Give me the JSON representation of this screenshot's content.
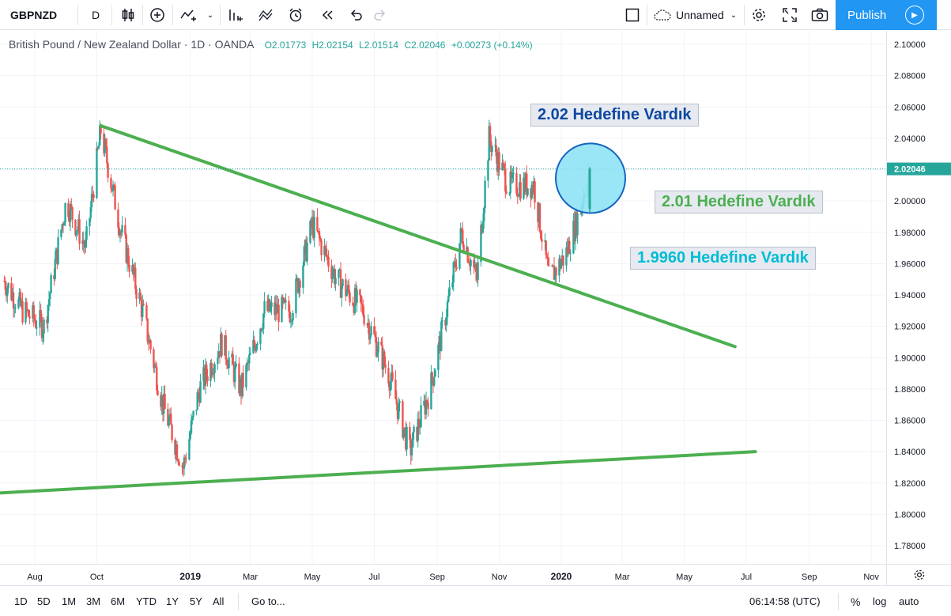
{
  "toolbar": {
    "symbol": "GBPNZD",
    "interval": "D",
    "layout_name": "Unnamed",
    "publish_label": "Publish"
  },
  "legend": {
    "title": "British Pound / New Zealand Dollar · 1D · OANDA",
    "open": "O2.01773",
    "high": "H2.02154",
    "low": "L2.01514",
    "close": "C2.02046",
    "change": "+0.00273 (+0.14%)"
  },
  "annotations": {
    "a1": "2.02 Hedefine Vardık",
    "a2": "2.01 Hedefine Vardık",
    "a3": "1.9960 Hedefine Vardık"
  },
  "colors": {
    "up": "#26a69a",
    "down": "#ef5350",
    "trendline": "#4caf50",
    "circle_fill": "#8fe3f5",
    "circle_stroke": "#1565c0",
    "annot1": "#0d47a1",
    "annot2": "#4caf50",
    "annot3": "#00bcd4",
    "last_price_bg": "#26a69a"
  },
  "price_axis": {
    "labels": [
      "2.10000",
      "2.08000",
      "2.06000",
      "2.04000",
      "2.02000",
      "2.00000",
      "1.98000",
      "1.96000",
      "1.94000",
      "1.92000",
      "1.90000",
      "1.88000",
      "1.86000",
      "1.84000",
      "1.82000",
      "1.80000",
      "1.78000"
    ],
    "last_price": "2.02046"
  },
  "time_axis": {
    "labels": [
      "Aug",
      "Oct",
      "2019",
      "Mar",
      "May",
      "Jul",
      "Sep",
      "Nov",
      "2020",
      "Mar",
      "May",
      "Jul",
      "Sep",
      "Nov"
    ],
    "bold": [
      "2019",
      "2020"
    ]
  },
  "bottom": {
    "ranges": [
      "1D",
      "5D",
      "1M",
      "3M",
      "6M",
      "YTD",
      "1Y",
      "5Y",
      "All"
    ],
    "goto": "Go to...",
    "time": "06:14:58 (UTC)",
    "percent": "%",
    "log": "log",
    "auto": "auto"
  },
  "chart_data": {
    "type": "candlestick",
    "symbol": "GBPNZD",
    "timeframe": "1D",
    "ylim": [
      1.77,
      2.105
    ],
    "approx_close_path": [
      {
        "date": "2018-07-01",
        "close": 1.95
      },
      {
        "date": "2018-07-20",
        "close": 1.93
      },
      {
        "date": "2018-08-10",
        "close": 1.92
      },
      {
        "date": "2018-09-01",
        "close": 2.0
      },
      {
        "date": "2018-09-20",
        "close": 1.97
      },
      {
        "date": "2018-10-05",
        "close": 2.045
      },
      {
        "date": "2018-10-25",
        "close": 1.98
      },
      {
        "date": "2018-11-15",
        "close": 1.93
      },
      {
        "date": "2018-12-05",
        "close": 1.87
      },
      {
        "date": "2018-12-25",
        "close": 1.83
      },
      {
        "date": "2019-01-10",
        "close": 1.88
      },
      {
        "date": "2019-02-01",
        "close": 1.91
      },
      {
        "date": "2019-02-20",
        "close": 1.88
      },
      {
        "date": "2019-03-15",
        "close": 1.93
      },
      {
        "date": "2019-04-10",
        "close": 1.93
      },
      {
        "date": "2019-05-01",
        "close": 1.985
      },
      {
        "date": "2019-05-25",
        "close": 1.95
      },
      {
        "date": "2019-06-20",
        "close": 1.93
      },
      {
        "date": "2019-07-15",
        "close": 1.89
      },
      {
        "date": "2019-08-05",
        "close": 1.84
      },
      {
        "date": "2019-08-25",
        "close": 1.88
      },
      {
        "date": "2019-09-10",
        "close": 1.93
      },
      {
        "date": "2019-09-25",
        "close": 1.98
      },
      {
        "date": "2019-10-10",
        "close": 1.95
      },
      {
        "date": "2019-10-22",
        "close": 2.04
      },
      {
        "date": "2019-11-10",
        "close": 2.01
      },
      {
        "date": "2019-12-05",
        "close": 2.01
      },
      {
        "date": "2019-12-20",
        "close": 1.95
      },
      {
        "date": "2020-01-05",
        "close": 1.965
      },
      {
        "date": "2020-01-20",
        "close": 1.995
      },
      {
        "date": "2020-01-28",
        "close": 2.02046
      }
    ],
    "trendlines": [
      {
        "name": "upper",
        "from": {
          "date": "2018-10-05",
          "price": 2.048
        },
        "to": {
          "date": "2020-06-20",
          "price": 1.907
        }
      },
      {
        "name": "lower",
        "from": {
          "date": "2018-06-10",
          "price": 1.813
        },
        "to": {
          "date": "2020-07-10",
          "price": 1.84
        }
      }
    ],
    "last_price": 2.02046
  }
}
